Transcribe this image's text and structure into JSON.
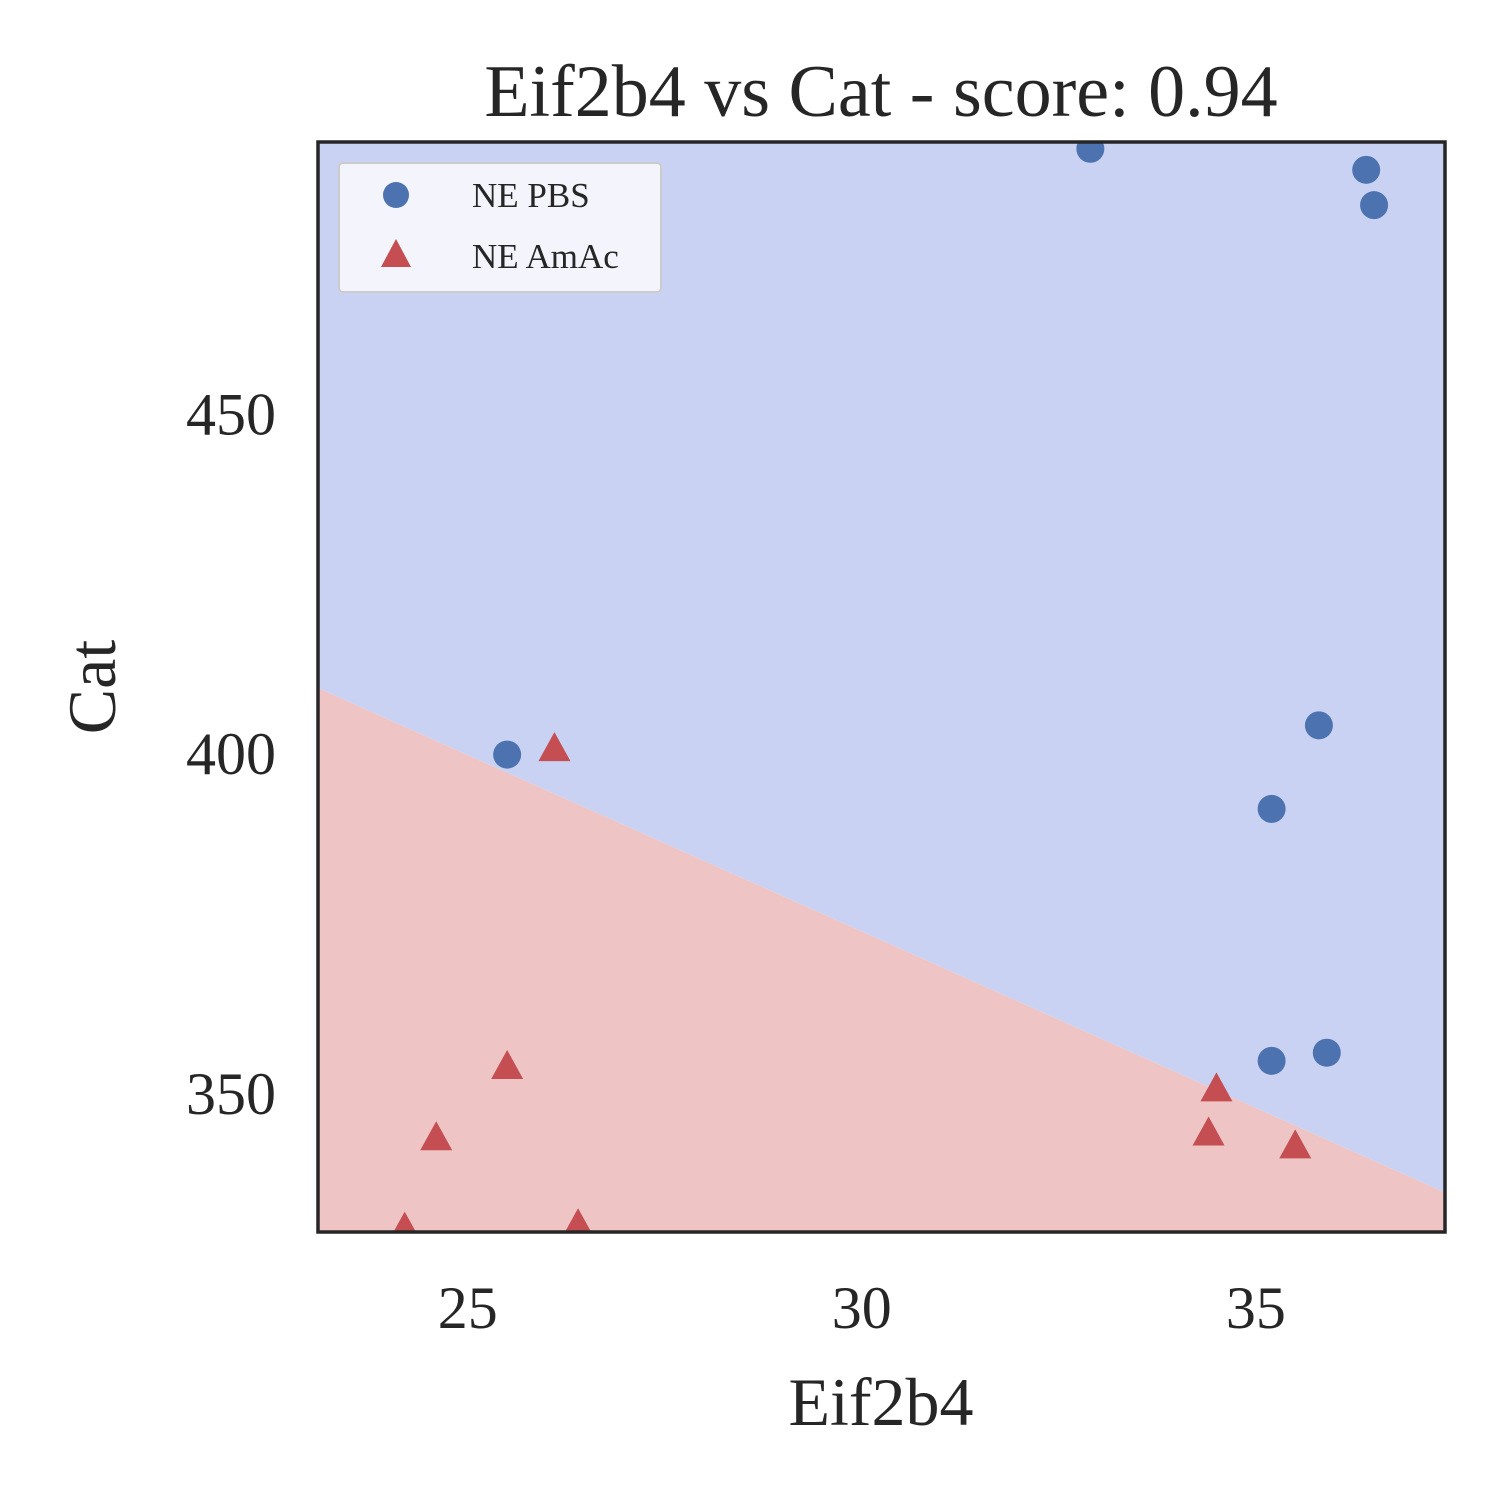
{
  "chart_data": {
    "type": "scatter",
    "title": "Eif2b4 vs Cat - score: 0.94",
    "xlabel": "Eif2b4",
    "ylabel": "Cat",
    "xlim": [
      23.1,
      37.4
    ],
    "ylim": [
      329.5,
      490
    ],
    "xticks": [
      25,
      30,
      35
    ],
    "yticks": [
      350,
      400,
      450
    ],
    "grid": false,
    "legend_position": "top-left",
    "decision_boundary": {
      "points": [
        [
          23.1,
          409.6
        ],
        [
          37.4,
          335.3
        ]
      ],
      "above_color": "#c9d2f2",
      "below_color": "#efc4c4"
    },
    "series": [
      {
        "name": "NE PBS",
        "marker": "circle",
        "color": "#4c72b0",
        "points": [
          [
            32.9,
            489.0
          ],
          [
            36.4,
            485.9
          ],
          [
            36.5,
            480.7
          ],
          [
            25.5,
            399.8
          ],
          [
            35.8,
            404.1
          ],
          [
            35.2,
            391.8
          ],
          [
            35.2,
            354.7
          ],
          [
            35.9,
            355.9
          ]
        ]
      },
      {
        "name": "NE AmAc",
        "marker": "triangle",
        "color": "#c44e52",
        "points": [
          [
            26.1,
            400.6
          ],
          [
            25.5,
            353.8
          ],
          [
            24.6,
            343.3
          ],
          [
            24.2,
            330.0
          ],
          [
            26.4,
            330.5
          ],
          [
            34.5,
            350.5
          ],
          [
            34.4,
            344.0
          ],
          [
            35.5,
            342.1
          ]
        ]
      }
    ]
  }
}
